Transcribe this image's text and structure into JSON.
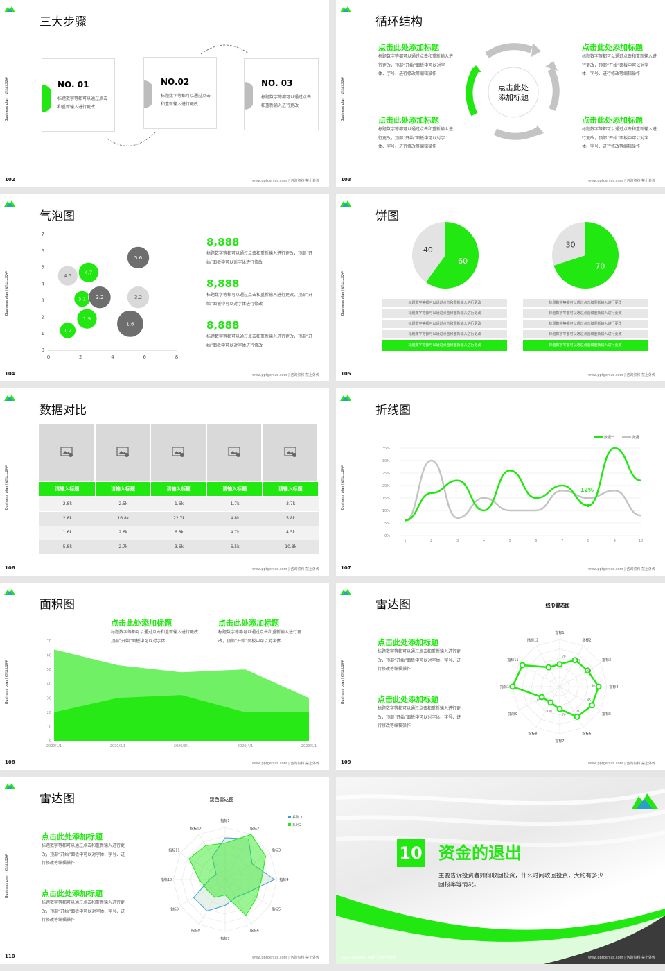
{
  "brand": {
    "green": "#22e812",
    "grey": "#bdbdbd",
    "dark": "#6e6e6e"
  },
  "common": {
    "side": "Business plan | 商业计划书",
    "foot": "www.pptgenius.com | 咨询资料·禁止外传"
  },
  "s102": {
    "title": "三大步骤",
    "page": "102",
    "steps": [
      {
        "no": "NO. 01",
        "text": "标题数字等都可以通过点击和重新输入进行更改"
      },
      {
        "no": "NO.02",
        "text": "标题数字等都可以通过点击和重新输入进行更改"
      },
      {
        "no": "NO. 03",
        "text": "标题数字等都可以通过点击和重新输入进行更改"
      }
    ]
  },
  "s103": {
    "title": "循环结构",
    "page": "103",
    "center": "点击此处\n添加标题",
    "items": [
      {
        "head": "点击此处添加标题",
        "text": "标题数字等都可以通过点击和重新输入进行更改，顶部“开始”面板中可以对字体、字号、进行修改等编辑操作"
      },
      {
        "head": "点击此处添加标题",
        "text": "标题数字等都可以通过点击和重新输入进行更改，顶部“开始”面板中可以对字体、字号、进行修改等编辑操作"
      },
      {
        "head": "点击此处添加标题",
        "text": "标题数字等都可以通过点击和重新输入进行更改，顶部“开始”面板中可以对字体、字号、进行修改等编辑操作"
      },
      {
        "head": "点击此处添加标题",
        "text": "标题数字等都可以通过点击和重新输入进行更改，顶部“开始”面板中可以对字体、字号、进行修改等编辑操作"
      }
    ]
  },
  "s104": {
    "title": "气泡图",
    "page": "104",
    "stats": [
      {
        "num": "8,888",
        "text": "标题数字等都可以通过点击和重新输入进行更改，顶部“开始”面板中可以对字体进行修改"
      },
      {
        "num": "8,888",
        "text": "标题数字等都可以通过点击和重新输入进行更改，顶部“开始”面板中可以对字体进行修改"
      },
      {
        "num": "8,888",
        "text": "标题数字等都可以通过点击和重新输入进行更改，顶部“开始”面板中可以对字体进行修改"
      }
    ]
  },
  "s105": {
    "title": "饼图",
    "page": "105",
    "rowtext": "标题数字等都可以通过点击和重新输入进行更改",
    "rowtext2": "标题数字等都可以通过点击和重新输入进行更改"
  },
  "s106": {
    "title": "数据对比",
    "page": "106",
    "headers": [
      "请输入标题",
      "请输入标题",
      "请输入标题",
      "请输入标题",
      "请输入标题"
    ],
    "rows": [
      [
        "2.8k",
        "2.5k",
        "1.6k",
        "1.7k",
        "3.7k"
      ],
      [
        "2.8k",
        "16.8k",
        "22.7k",
        "4.8k",
        "5.8k"
      ],
      [
        "1.6k",
        "2.6k",
        "6.8k",
        "4.7k",
        "4.5k"
      ],
      [
        "5.8k",
        "2.7k",
        "3.6k",
        "6.5k",
        "10.8k"
      ]
    ]
  },
  "s107": {
    "title": "折线图",
    "page": "107",
    "annot": "12%"
  },
  "s108": {
    "title": "面积图",
    "page": "108",
    "items": [
      {
        "head": "点击此处添加标题",
        "text": "标题数字等都可以通过点击和重新输入进行更改，顶部“开始”面板中可以对字体"
      },
      {
        "head": "点击此处添加标题",
        "text": "标题数字等都可以通过点击和重新输入进行更改，顶部“开始”面板中可以对字体"
      }
    ]
  },
  "s109": {
    "title": "雷达图",
    "page": "109",
    "chart_title": "线形雷达图",
    "items": [
      {
        "head": "点击此处添加标题",
        "text": "标题数字等都可以通过点击和重新输入进行更改，顶部“开始”面板中可以对字体、字号、进行修改等编辑操作"
      },
      {
        "head": "点击此处添加标题",
        "text": "标题数字等都可以通过点击和重新输入进行更改，顶部“开始”面板中可以对字体、字号、进行修改等编辑操作"
      }
    ]
  },
  "s110": {
    "title": "雷达图",
    "page": "110",
    "chart_title": "双色雷达图",
    "items": [
      {
        "head": "点击此处添加标题",
        "text": "标题数字等都可以通过点击和重新输入进行更改，顶部“开始”面板中可以对字体、字号、进行修改等编辑操作"
      },
      {
        "head": "点击此处添加标题",
        "text": "标题数字等都可以通过点击和重新输入进行更改，顶部“开始”面板中可以对字体、字号、进行修改等编辑操作"
      }
    ]
  },
  "s111": {
    "num": "10",
    "title": "资金的退出",
    "text": "主要告诉投资者如何收回投资，什么时间收回投资，大约有多少回报率等情况。",
    "foot_left": "111 | Business plan | 商业计划书"
  },
  "chart_data": [
    {
      "type": "scatter",
      "id": "bubble",
      "xlim": [
        0,
        8
      ],
      "ylim": [
        0,
        7
      ],
      "xticks": [
        0,
        2,
        4,
        6,
        8
      ],
      "yticks": [
        0,
        1,
        2,
        3,
        4,
        5,
        6,
        7
      ],
      "points": [
        {
          "x": 1.2,
          "y": 1.2,
          "label": "1.2",
          "size": 1.2,
          "color": "green"
        },
        {
          "x": 2.4,
          "y": 1.9,
          "label": "1.9",
          "size": 1.9,
          "color": "green"
        },
        {
          "x": 2.1,
          "y": 3.1,
          "label": "3.1",
          "size": 1.2,
          "color": "green"
        },
        {
          "x": 2.5,
          "y": 4.7,
          "label": "4.7",
          "size": 1.9,
          "color": "green"
        },
        {
          "x": 1.2,
          "y": 4.5,
          "label": "4.5",
          "size": 1.9,
          "color": "grey"
        },
        {
          "x": 3.2,
          "y": 3.2,
          "label": "3.2",
          "size": 2.3,
          "color": "dark"
        },
        {
          "x": 5.6,
          "y": 5.6,
          "label": "5.6",
          "size": 2.3,
          "color": "dark"
        },
        {
          "x": 5.6,
          "y": 3.2,
          "label": "3.2",
          "size": 2.3,
          "color": "grey"
        },
        {
          "x": 5.1,
          "y": 1.6,
          "label": "1.6",
          "size": 3.1,
          "color": "dark"
        }
      ]
    },
    {
      "type": "pie",
      "id": "pie1",
      "values": [
        60,
        40
      ],
      "labels": [
        "60",
        "40"
      ]
    },
    {
      "type": "pie",
      "id": "pie2",
      "values": [
        70,
        30
      ],
      "labels": [
        "70",
        "30"
      ]
    },
    {
      "type": "line",
      "id": "line",
      "x": [
        1,
        2,
        3,
        4,
        5,
        6,
        7,
        8,
        9,
        10
      ],
      "yticks": [
        "0%",
        "5%",
        "10%",
        "15%",
        "20%",
        "25%",
        "30%",
        "35%"
      ],
      "ylim": [
        0,
        35
      ],
      "series": [
        {
          "name": "数据一",
          "values": [
            6,
            17,
            22,
            10,
            26,
            15,
            20,
            12,
            35,
            22
          ]
        },
        {
          "name": "数据二",
          "values": [
            6,
            30,
            7,
            15,
            10,
            10,
            18,
            15,
            18,
            8
          ]
        }
      ]
    },
    {
      "type": "area",
      "id": "area",
      "x": [
        "2020/1/1",
        "2020/2/1",
        "2020/3/1",
        "2020/4/1",
        "2020/5/1"
      ],
      "yticks": [
        0,
        10,
        20,
        30,
        40,
        50,
        60,
        70
      ],
      "ylim": [
        0,
        70
      ],
      "series": [
        {
          "values": [
            64,
            53,
            48,
            50,
            30
          ]
        },
        {
          "values": [
            20,
            30,
            32,
            20,
            20
          ]
        }
      ]
    },
    {
      "type": "radar",
      "id": "radar1",
      "title": "线形雷达图",
      "axes": [
        "指标1",
        "指标2",
        "指标3",
        "指标4",
        "指标5",
        "指标6",
        "指标7",
        "指标8",
        "指标9",
        "指标10",
        "指标11",
        "指标12"
      ],
      "values": [
        70,
        80,
        82,
        90,
        88,
        85,
        70,
        65,
        68,
        100,
        95,
        70
      ],
      "ticks": [
        "70",
        "82",
        "90",
        "80",
        "85",
        "80",
        "70",
        "100",
        "95"
      ]
    },
    {
      "type": "radar",
      "id": "radar2",
      "title": "双色雷达图",
      "axes": [
        "指标1",
        "指标2",
        "指标3",
        "指标4",
        "指标5",
        "指标6",
        "指标7",
        "指标8",
        "指标9",
        "指标10",
        "指标11",
        "指标12"
      ],
      "series": [
        {
          "name": "系列 1",
          "values": [
            0.8,
            0.9,
            0.6,
            0.95,
            0.5,
            0.4,
            0.5,
            0.7,
            0.7,
            0.3,
            0.2,
            0.5
          ]
        },
        {
          "name": "系列2",
          "values": [
            0.7,
            1.0,
            0.9,
            0.7,
            0.7,
            0.8,
            0.3,
            0.4,
            0.4,
            0.5,
            0.8,
            0.75
          ]
        }
      ]
    }
  ]
}
